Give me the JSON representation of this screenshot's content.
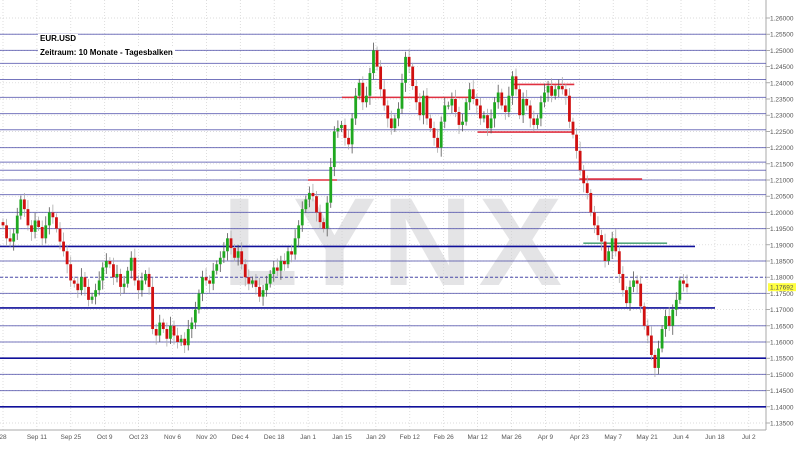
{
  "header": {
    "symbol": "EUR.USD",
    "subtitle": "Zeitraum: 10 Monate - Tagesbalken"
  },
  "watermark": "LYNX",
  "colors": {
    "up": "#1fa81f",
    "down": "#d01010",
    "level": "#4848a8",
    "level_strong": "#10109a",
    "resistance": "#e03040",
    "support_green": "#3a9a6a",
    "last_price_bg": "#ffff40"
  },
  "chart_data": {
    "type": "candlestick",
    "title": "EUR.USD",
    "subtitle": "Zeitraum: 10 Monate - Tagesbalken",
    "ylim": [
      1.132,
      1.262
    ],
    "yticks": [
      "1.26000",
      "1.25500",
      "1.25000",
      "1.24500",
      "1.24000",
      "1.23500",
      "1.23000",
      "1.22500",
      "1.22000",
      "1.21500",
      "1.21000",
      "1.20500",
      "1.20000",
      "1.19500",
      "1.19000",
      "1.18500",
      "1.18000",
      "1.17500",
      "1.17000",
      "1.16500",
      "1.16000",
      "1.15500",
      "1.15000",
      "1.14500",
      "1.14000",
      "1.13500"
    ],
    "xticks": [
      "28",
      "Sep 11",
      "Sep 25",
      "Oct 9",
      "Oct 23",
      "Nov 6",
      "Nov 20",
      "Dec 4",
      "Dec 18",
      "Jan 1",
      "Jan 15",
      "Jan 29",
      "Feb 12",
      "Feb 26",
      "Mar 12",
      "Mar 26",
      "Apr 9",
      "Apr 23",
      "May 7",
      "May 21",
      "Jun 4",
      "Jun 18",
      "Jul 2"
    ],
    "last_price": "1.17692",
    "grid": true,
    "closes": [
      1.196,
      1.192,
      1.191,
      1.1935,
      1.199,
      1.204,
      1.201,
      1.196,
      1.194,
      1.1975,
      1.1955,
      1.192,
      1.196,
      1.2,
      1.1985,
      1.195,
      1.191,
      1.188,
      1.184,
      1.179,
      1.178,
      1.176,
      1.18,
      1.177,
      1.173,
      1.174,
      1.176,
      1.179,
      1.183,
      1.185,
      1.184,
      1.18,
      1.181,
      1.177,
      1.178,
      1.182,
      1.186,
      1.179,
      1.176,
      1.179,
      1.181,
      1.177,
      1.164,
      1.162,
      1.166,
      1.164,
      1.161,
      1.165,
      1.162,
      1.16,
      1.161,
      1.159,
      1.164,
      1.166,
      1.17,
      1.175,
      1.18,
      1.179,
      1.178,
      1.182,
      1.184,
      1.186,
      1.188,
      1.192,
      1.189,
      1.186,
      1.188,
      1.184,
      1.18,
      1.178,
      1.179,
      1.177,
      1.174,
      1.176,
      1.178,
      1.181,
      1.183,
      1.182,
      1.185,
      1.184,
      1.188,
      1.187,
      1.192,
      1.196,
      1.201,
      1.204,
      1.206,
      1.205,
      1.2,
      1.197,
      1.195,
      1.203,
      1.214,
      1.225,
      1.226,
      1.227,
      1.223,
      1.221,
      1.229,
      1.236,
      1.24,
      1.234,
      1.236,
      1.243,
      1.25,
      1.245,
      1.238,
      1.233,
      1.229,
      1.226,
      1.229,
      1.232,
      1.24,
      1.248,
      1.245,
      1.239,
      1.234,
      1.23,
      1.236,
      1.229,
      1.226,
      1.223,
      1.22,
      1.228,
      1.233,
      1.233,
      1.235,
      1.231,
      1.227,
      1.228,
      1.234,
      1.238,
      1.235,
      1.233,
      1.229,
      1.23,
      1.226,
      1.229,
      1.234,
      1.237,
      1.233,
      1.231,
      1.236,
      1.242,
      1.238,
      1.23,
      1.235,
      1.233,
      1.229,
      1.227,
      1.229,
      1.234,
      1.237,
      1.239,
      1.236,
      1.238,
      1.239,
      1.238,
      1.236,
      1.228,
      1.224,
      1.219,
      1.213,
      1.209,
      1.206,
      1.2,
      1.196,
      1.193,
      1.191,
      1.185,
      1.188,
      1.192,
      1.188,
      1.181,
      1.176,
      1.172,
      1.177,
      1.179,
      1.178,
      1.171,
      1.165,
      1.162,
      1.156,
      1.152,
      1.158,
      1.164,
      1.168,
      1.165,
      1.17,
      1.173,
      1.179,
      1.178,
      1.1769
    ],
    "levels": [
      1.255,
      1.25,
      1.246,
      1.241,
      1.2355,
      1.2305,
      1.2255,
      1.22,
      1.2155,
      1.213,
      1.21,
      1.2055,
      1.2,
      1.195,
      1.185,
      1.175,
      1.165,
      1.16,
      1.15,
      1.145
    ],
    "strong_levels": [
      1.1895,
      1.1705,
      1.155,
      1.14
    ],
    "dashed_level": 1.18,
    "resistance_lines": [
      {
        "price": 1.2355,
        "from": "Jan 15",
        "to": "Mar 12"
      },
      {
        "price": 1.21,
        "from": "Jan 1",
        "to": "Jan 15"
      },
      {
        "price": 1.2395,
        "from": "Mar 26",
        "to": "Apr 23"
      },
      {
        "price": 1.2248,
        "from": "Mar 12",
        "to": "Apr 23"
      },
      {
        "price": 1.2103,
        "from": "Apr 23",
        "to": "May 21"
      }
    ],
    "support_line": {
      "price": 1.1905,
      "from": "Apr 23",
      "to": "May 21"
    }
  }
}
